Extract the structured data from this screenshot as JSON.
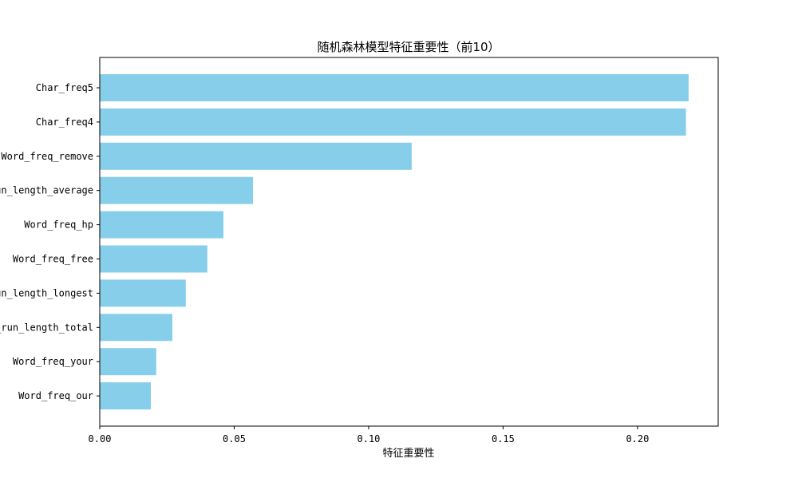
{
  "chart_data": {
    "type": "bar",
    "orientation": "horizontal",
    "title": "随机森林模型特征重要性（前10）",
    "xlabel": "特征重要性",
    "ylabel": "",
    "xlim": [
      0.0,
      0.23
    ],
    "x_ticks": [
      "0.00",
      "0.05",
      "0.10",
      "0.15",
      "0.20"
    ],
    "bar_color": "#87ceeb",
    "grid": false,
    "categories": [
      "Char_freq5",
      "Char_freq4",
      "Word_freq_remove",
      "Capital_run_length_average",
      "Word_freq_hp",
      "Word_freq_free",
      "Capital_run_length_longest",
      "Capital_run_length_total",
      "Word_freq_your",
      "Word_freq_our"
    ],
    "values": [
      0.219,
      0.218,
      0.116,
      0.057,
      0.046,
      0.04,
      0.032,
      0.027,
      0.021,
      0.019
    ]
  }
}
